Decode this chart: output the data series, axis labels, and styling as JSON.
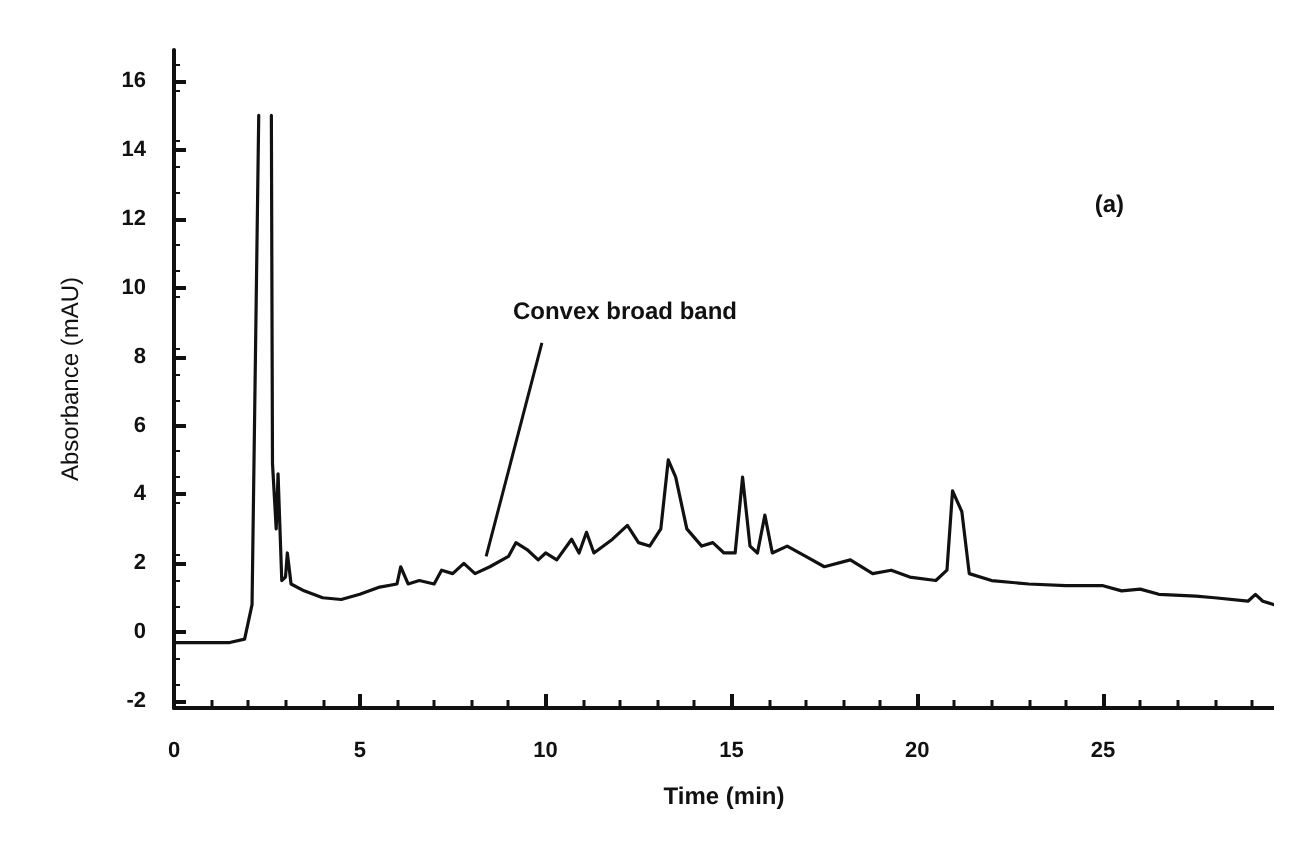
{
  "chart_data": {
    "type": "line",
    "xlabel": "Time (min)",
    "ylabel": "Absorbance (mAU)",
    "x": [
      0,
      1.5,
      1.9,
      2.1,
      2.28,
      2.4,
      2.55,
      2.62,
      2.65,
      2.75,
      2.8,
      2.9,
      3.0,
      3.05,
      3.15,
      3.5,
      4,
      4.5,
      5,
      5.5,
      6,
      6.1,
      6.3,
      6.6,
      7,
      7.2,
      7.5,
      7.8,
      8.1,
      8.5,
      9,
      9.2,
      9.5,
      9.8,
      10,
      10.3,
      10.7,
      10.9,
      11.1,
      11.3,
      11.8,
      12.2,
      12.5,
      12.8,
      13.1,
      13.3,
      13.5,
      13.8,
      14.2,
      14.5,
      14.8,
      15.1,
      15.3,
      15.5,
      15.7,
      15.9,
      16.1,
      16.5,
      17,
      17.5,
      18.2,
      18.8,
      19.3,
      19.8,
      20.5,
      20.8,
      20.95,
      21.2,
      21.4,
      22,
      23,
      24,
      25,
      25.5,
      26,
      26.5,
      27.5,
      28,
      28.9,
      29.1,
      29.3,
      29.6
    ],
    "series": [
      {
        "color": "#111111",
        "values": [
          -0.3,
          -0.3,
          -0.2,
          0.8,
          15.0,
          null,
          null,
          15.0,
          4.9,
          3.0,
          4.6,
          1.5,
          1.6,
          2.3,
          1.4,
          1.2,
          1.0,
          0.95,
          1.1,
          1.3,
          1.4,
          1.9,
          1.4,
          1.5,
          1.4,
          1.8,
          1.7,
          2.0,
          1.7,
          1.9,
          2.2,
          2.6,
          2.4,
          2.1,
          2.3,
          2.1,
          2.7,
          2.3,
          2.9,
          2.3,
          2.7,
          3.1,
          2.6,
          2.5,
          3.0,
          5.0,
          4.5,
          3.0,
          2.5,
          2.6,
          2.3,
          2.3,
          4.5,
          2.5,
          2.3,
          3.4,
          2.3,
          2.5,
          2.2,
          1.9,
          2.1,
          1.7,
          1.8,
          1.6,
          1.5,
          1.8,
          4.1,
          3.5,
          1.7,
          1.5,
          1.4,
          1.35,
          1.35,
          1.2,
          1.25,
          1.1,
          1.05,
          1.0,
          0.9,
          1.1,
          0.9,
          0.8
        ]
      }
    ],
    "xlim": [
      0,
      29.6
    ],
    "ylim": [
      -2.2,
      16.9
    ],
    "xticks": [
      0,
      5,
      10,
      15,
      20,
      25
    ],
    "yticks": [
      -2,
      0,
      2,
      4,
      6,
      8,
      10,
      12,
      14,
      16
    ],
    "marker": "none",
    "line_style": "solid",
    "annotations": [
      {
        "text": "Convex broad band",
        "x": 8.4,
        "y": 2.2
      },
      "(a)"
    ]
  }
}
